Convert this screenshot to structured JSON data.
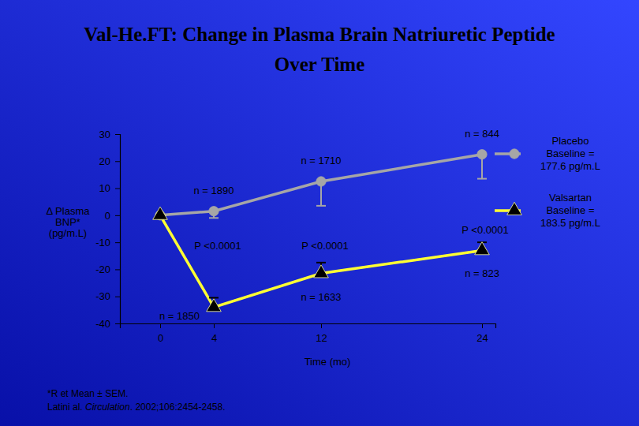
{
  "chart_data": {
    "type": "line",
    "title": [
      "Val-He.FT: Change in Plasma Brain Natriuretic Peptide",
      "Over Time"
    ],
    "ylabel": [
      "Δ Plasma",
      "BNP*",
      "(pg/m.L)"
    ],
    "xlabel": "Time (mo)",
    "x": [
      0,
      4,
      12,
      24
    ],
    "xlim": [
      -3,
      25
    ],
    "xticks": [
      0,
      4,
      12,
      24
    ],
    "ylim": [
      -40,
      30
    ],
    "yticks": [
      30,
      20,
      10,
      0,
      -10,
      -20,
      -30,
      -40
    ],
    "grid": false,
    "legend": "right",
    "series": [
      {
        "name": "Placebo",
        "baseline": [
          "Baseline =",
          "177.6 pg/m.L"
        ],
        "color": "#a6a6a6",
        "marker": "circle",
        "values": [
          0,
          1.5,
          12.5,
          22.5
        ],
        "errors": [
          0,
          2.5,
          9,
          9
        ],
        "n_labels": [
          null,
          "n = 1890",
          "n = 1710",
          "n = 844"
        ]
      },
      {
        "name": "Valsartan",
        "baseline": [
          "Baseline =",
          "183.5 pg/m.L"
        ],
        "color": "#ffff33",
        "marker": "triangle",
        "values": [
          0,
          -34,
          -21.5,
          -13
        ],
        "errors": [
          0,
          3.5,
          4,
          3
        ],
        "n_labels": [
          null,
          "n = 1850",
          "n = 1633",
          "n = 823"
        ]
      }
    ],
    "p_labels": [
      null,
      "P <0.0001",
      "P <0.0001",
      "P <0.0001"
    ],
    "footnote": "*R et Mean ± SEM.",
    "source": [
      "Latini al. ",
      "Circulation",
      ". 2002;106:2454-2458."
    ]
  }
}
